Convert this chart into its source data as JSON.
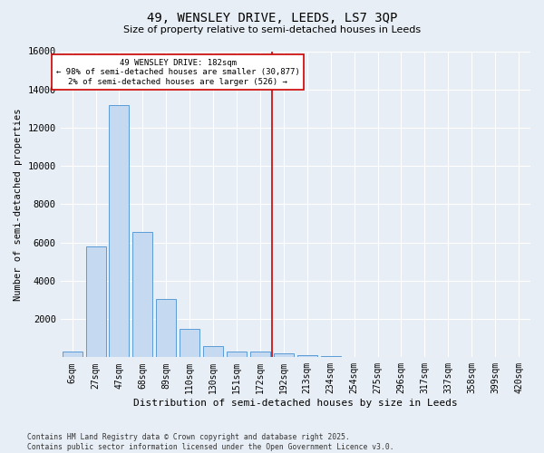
{
  "title1": "49, WENSLEY DRIVE, LEEDS, LS7 3QP",
  "title2": "Size of property relative to semi-detached houses in Leeds",
  "xlabel": "Distribution of semi-detached houses by size in Leeds",
  "ylabel": "Number of semi-detached properties",
  "bin_labels": [
    "6sqm",
    "27sqm",
    "47sqm",
    "68sqm",
    "89sqm",
    "110sqm",
    "130sqm",
    "151sqm",
    "172sqm",
    "192sqm",
    "213sqm",
    "234sqm",
    "254sqm",
    "275sqm",
    "296sqm",
    "317sqm",
    "337sqm",
    "358sqm",
    "399sqm",
    "420sqm"
  ],
  "bar_values": [
    300,
    5800,
    13200,
    6550,
    3050,
    1500,
    600,
    300,
    280,
    220,
    120,
    60,
    20,
    10,
    0,
    0,
    0,
    0,
    0,
    0
  ],
  "bar_color": "#c5d9f0",
  "bar_edge_color": "#5b9bd5",
  "vline_color": "#cc0000",
  "annotation_text": "49 WENSLEY DRIVE: 182sqm\n← 98% of semi-detached houses are smaller (30,877)\n2% of semi-detached houses are larger (526) →",
  "ylim": [
    0,
    16000
  ],
  "yticks": [
    0,
    2000,
    4000,
    6000,
    8000,
    10000,
    12000,
    14000,
    16000
  ],
  "footer1": "Contains HM Land Registry data © Crown copyright and database right 2025.",
  "footer2": "Contains public sector information licensed under the Open Government Licence v3.0.",
  "bg_color": "#e8eef5",
  "grid_color": "#ffffff"
}
